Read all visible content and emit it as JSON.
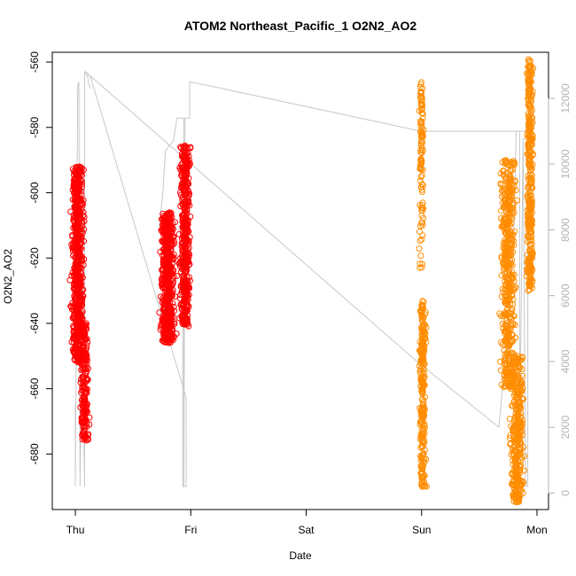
{
  "chart_data": {
    "type": "scatter",
    "title": "ATOM2 Northeast_Pacific_1 O2N2_AO2",
    "xlabel": "Date",
    "ylabel": "O2N2_AO2",
    "x_tick_labels": [
      "Thu",
      "Fri",
      "Sat",
      "Sun",
      "Mon"
    ],
    "xlim": [
      -0.2,
      4.1
    ],
    "y_ticks": [
      -560,
      -580,
      -600,
      -620,
      -640,
      -660,
      -680
    ],
    "ylim": [
      -697,
      -557
    ],
    "y2_ticks": [
      0,
      2000,
      4000,
      6000,
      8000,
      10000,
      12000
    ],
    "y2lim": [
      -500,
      13400
    ],
    "grid": false,
    "colors": {
      "points_early": "#ff0000",
      "points_late": "#ff8c00",
      "secondary_line": "#c8c8c8",
      "right_axis": "#b3b3b3"
    },
    "series": [
      {
        "type": "scatter",
        "marker": "open-circle",
        "color": "#ff0000",
        "clusters": [
          {
            "x_center": 0.02,
            "x_spread": 0.08,
            "y_min": -652,
            "y_max": -592,
            "n": 700
          },
          {
            "x_center": 0.08,
            "x_spread": 0.05,
            "y_min": -676,
            "y_max": -640,
            "n": 200
          },
          {
            "x_center": 0.8,
            "x_spread": 0.09,
            "y_min": -646,
            "y_max": -606,
            "n": 600
          },
          {
            "x_center": 0.95,
            "x_spread": 0.07,
            "y_min": -641,
            "y_max": -585,
            "n": 450
          }
        ]
      },
      {
        "type": "scatter",
        "marker": "open-circle",
        "color": "#ff8c00",
        "clusters": [
          {
            "x_center": 3.0,
            "x_spread": 0.03,
            "y_min": -597,
            "y_max": -566,
            "n": 80
          },
          {
            "x_center": 3.0,
            "x_spread": 0.03,
            "y_min": -623,
            "y_max": -596,
            "n": 30
          },
          {
            "x_center": 3.01,
            "x_spread": 0.04,
            "y_min": -690,
            "y_max": -633,
            "n": 250
          },
          {
            "x_center": 3.75,
            "x_spread": 0.1,
            "y_min": -660,
            "y_max": -590,
            "n": 500
          },
          {
            "x_center": 3.83,
            "x_spread": 0.09,
            "y_min": -695,
            "y_max": -650,
            "n": 350
          },
          {
            "x_center": 3.94,
            "x_spread": 0.04,
            "y_min": -630,
            "y_max": -559,
            "n": 350
          }
        ]
      },
      {
        "type": "line",
        "axis": "right",
        "color": "#c8c8c8",
        "x": [
          0.0,
          0.0,
          0.02,
          0.03,
          0.04,
          0.05,
          0.07,
          0.08,
          0.08,
          0.1,
          0.12,
          0.13,
          0.14,
          0.14,
          0.96,
          0.96,
          0.93,
          0.93,
          0.73,
          0.73,
          0.76,
          0.78,
          0.8,
          0.85,
          0.88,
          0.94,
          0.94,
          0.95,
          0.99,
          0.99,
          1.0,
          3.0,
          3.02,
          3.8,
          3.85,
          3.85,
          3.86,
          3.88,
          3.9,
          3.92,
          3.92,
          3.9,
          3.82,
          3.8,
          3.75,
          3.67,
          2.96,
          0.09,
          0.09,
          0.1,
          0.11,
          0.11,
          0.12,
          0.13
        ],
        "y": [
          2700,
          200,
          12400,
          12500,
          200,
          2700,
          2650,
          200,
          12800,
          12750,
          12700,
          12650,
          12600,
          12550,
          2900,
          200,
          200,
          8000,
          8100,
          8200,
          9200,
          10400,
          10500,
          10700,
          11400,
          11400,
          200,
          11400,
          11400,
          12500,
          12500,
          11000,
          11000,
          11000,
          11000,
          2000,
          4500,
          10800,
          200,
          200,
          11000,
          11000,
          11000,
          8000,
          5000,
          2000,
          4000,
          12800,
          12800,
          12700,
          12600,
          12500,
          12400,
          12300
        ]
      }
    ]
  }
}
